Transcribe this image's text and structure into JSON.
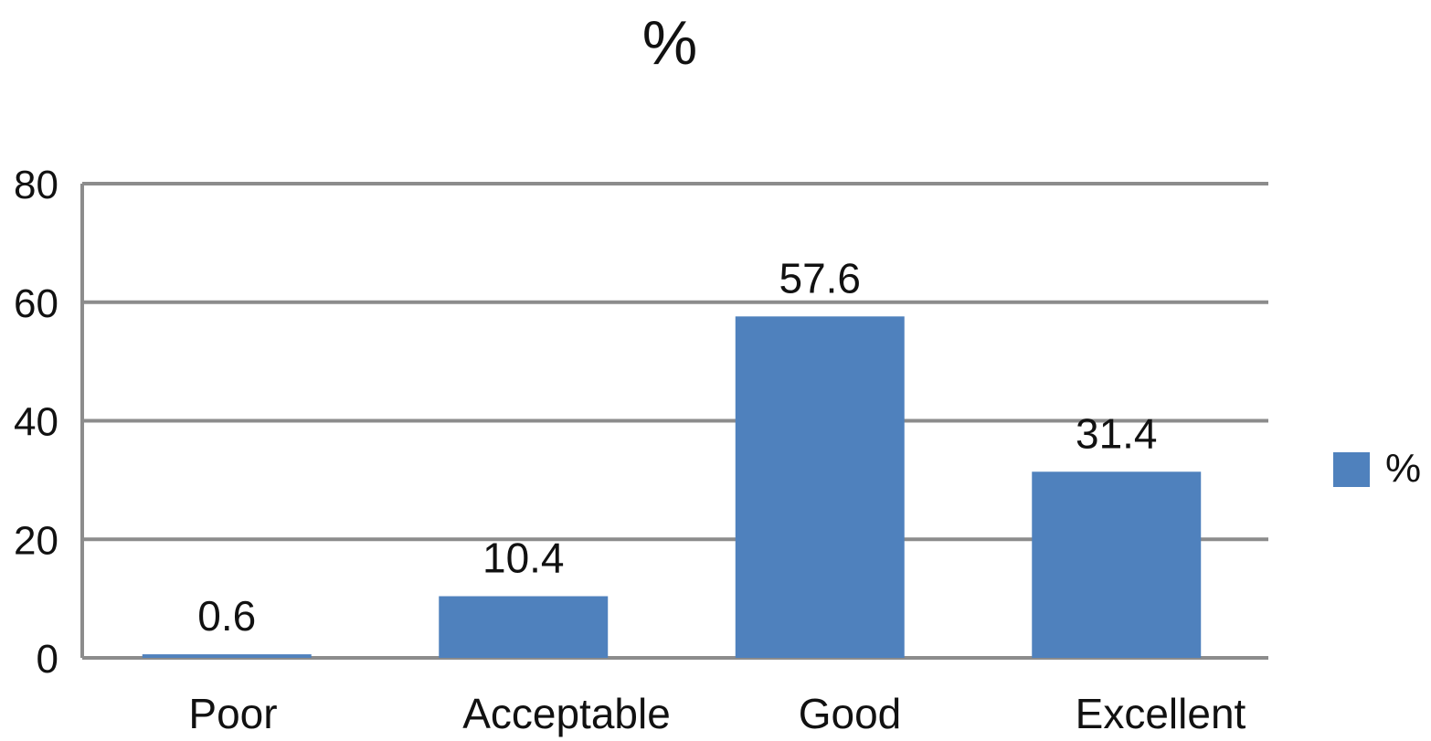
{
  "chart_data": {
    "type": "bar",
    "title": "%",
    "xlabel": "",
    "ylabel": "",
    "categories": [
      "Poor",
      "Acceptable",
      "Good",
      "Excellent"
    ],
    "series": [
      {
        "name": "%",
        "values": [
          0.6,
          10.4,
          57.6,
          31.4
        ],
        "color": "#4f81bd"
      }
    ],
    "data_labels": [
      "0.6",
      "10.4",
      "57.6",
      "31.4"
    ],
    "ylim": [
      0,
      80
    ],
    "yticks": [
      0,
      20,
      40,
      60,
      80
    ],
    "ytick_labels": [
      "0",
      "20",
      "40",
      "60",
      "80"
    ],
    "grid": true,
    "legend_position": "right",
    "colors": {
      "bar": "#4f81bd",
      "grid": "#8c8c8c",
      "text": "#111111"
    }
  }
}
